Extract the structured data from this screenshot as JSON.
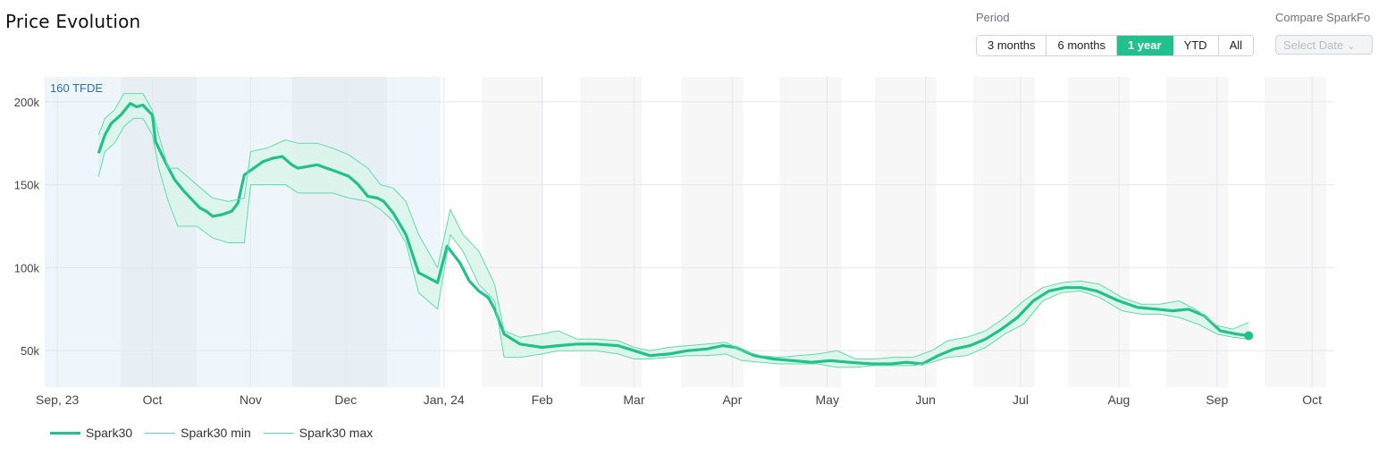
{
  "header": {
    "title": "Price Evolution",
    "period_label": "Period",
    "compare_label": "Compare SparkFo",
    "periods": [
      {
        "label": "3 months",
        "active": false
      },
      {
        "label": "6 months",
        "active": false
      },
      {
        "label": "1 year",
        "active": true
      },
      {
        "label": "YTD",
        "active": false
      },
      {
        "label": "All",
        "active": false
      }
    ],
    "date_placeholder": "Select Date"
  },
  "colors": {
    "accent": "#22c08a",
    "band_line": "#5fdcae",
    "band_fill": "#d9f5ea"
  },
  "chart_data": {
    "type": "line",
    "annotation": "160 TFDE",
    "x_tick_labels": [
      "Sep, 23",
      "Oct",
      "Nov",
      "Dec",
      "Jan, 24",
      "Feb",
      "Mar",
      "Apr",
      "May",
      "Jun",
      "Jul",
      "Aug",
      "Sep",
      "Oct"
    ],
    "x_ticks": [
      "2023-09-01",
      "2023-10-01",
      "2023-11-01",
      "2023-12-01",
      "2024-01-01",
      "2024-02-01",
      "2024-03-01",
      "2024-04-01",
      "2024-05-01",
      "2024-06-01",
      "2024-07-01",
      "2024-08-01",
      "2024-09-01",
      "2024-10-01"
    ],
    "x_range": [
      "2023-08-28",
      "2024-10-08"
    ],
    "y_tick_labels": [
      "50k",
      "100k",
      "150k",
      "200k"
    ],
    "y_ticks": [
      50000,
      100000,
      150000,
      200000
    ],
    "ylim": [
      28000,
      215000
    ],
    "shaded_ranges": [
      [
        "2023-08-28",
        "2023-12-31"
      ],
      [
        "2023-09-21",
        "2023-10-15"
      ],
      [
        "2023-11-14",
        "2023-12-14"
      ]
    ],
    "series": [
      {
        "name": "Spark30",
        "style": "thick",
        "x": [
          "2023-09-14",
          "2023-09-16",
          "2023-09-18",
          "2023-09-21",
          "2023-09-24",
          "2023-09-26",
          "2023-09-28",
          "2023-10-01",
          "2023-10-02",
          "2023-10-05",
          "2023-10-08",
          "2023-10-11",
          "2023-10-14",
          "2023-10-16",
          "2023-10-18",
          "2023-10-20",
          "2023-10-23",
          "2023-10-26",
          "2023-10-28",
          "2023-10-30",
          "2023-11-02",
          "2023-11-05",
          "2023-11-08",
          "2023-11-11",
          "2023-11-14",
          "2023-11-16",
          "2023-11-19",
          "2023-11-22",
          "2023-11-25",
          "2023-11-28",
          "2023-12-02",
          "2023-12-05",
          "2023-12-08",
          "2023-12-11",
          "2023-12-13",
          "2023-12-16",
          "2023-12-20",
          "2023-12-24",
          "2023-12-30",
          "2024-01-02",
          "2024-01-06",
          "2024-01-09",
          "2024-01-12",
          "2024-01-15",
          "2024-01-17",
          "2024-01-20",
          "2024-01-25",
          "2024-02-01",
          "2024-02-06",
          "2024-02-12",
          "2024-02-18",
          "2024-02-25",
          "2024-03-01",
          "2024-03-06",
          "2024-03-12",
          "2024-03-18",
          "2024-03-24",
          "2024-03-29",
          "2024-04-02",
          "2024-04-08",
          "2024-04-14",
          "2024-04-20",
          "2024-04-26",
          "2024-05-02",
          "2024-05-08",
          "2024-05-15",
          "2024-05-21",
          "2024-05-26",
          "2024-05-31",
          "2024-06-05",
          "2024-06-10",
          "2024-06-15",
          "2024-06-20",
          "2024-06-25",
          "2024-06-30",
          "2024-07-05",
          "2024-07-10",
          "2024-07-15",
          "2024-07-20",
          "2024-07-25",
          "2024-08-01",
          "2024-08-07",
          "2024-08-13",
          "2024-08-18",
          "2024-08-23",
          "2024-08-28",
          "2024-09-02",
          "2024-09-07",
          "2024-09-11"
        ],
        "y": [
          169000,
          180000,
          187000,
          192000,
          199000,
          197000,
          198000,
          192000,
          176000,
          164000,
          153000,
          146000,
          140000,
          136000,
          134000,
          131000,
          132000,
          134000,
          139000,
          156000,
          160000,
          164000,
          166000,
          167000,
          162000,
          160000,
          161000,
          162000,
          160000,
          158000,
          155000,
          150000,
          143000,
          142000,
          140000,
          133000,
          120000,
          97000,
          91000,
          113000,
          103000,
          92000,
          86000,
          82000,
          75000,
          60000,
          54000,
          52000,
          53000,
          54000,
          54000,
          53000,
          50000,
          47000,
          48000,
          50000,
          51000,
          53000,
          52000,
          47000,
          45000,
          44000,
          43000,
          44000,
          43000,
          42000,
          42000,
          43000,
          42000,
          47000,
          51000,
          53000,
          57000,
          63000,
          70000,
          80000,
          86000,
          88000,
          88000,
          86000,
          80000,
          76000,
          75000,
          74000,
          75000,
          71000,
          62000,
          60000,
          59000
        ]
      },
      {
        "name": "Spark30 min",
        "style": "thin",
        "x": [
          "2023-09-14",
          "2023-09-16",
          "2023-09-19",
          "2023-09-22",
          "2023-09-25",
          "2023-09-28",
          "2023-10-01",
          "2023-10-03",
          "2023-10-06",
          "2023-10-09",
          "2023-10-15",
          "2023-10-20",
          "2023-10-25",
          "2023-10-30",
          "2023-11-01",
          "2023-11-06",
          "2023-11-12",
          "2023-11-16",
          "2023-11-22",
          "2023-11-27",
          "2023-12-02",
          "2023-12-08",
          "2023-12-12",
          "2023-12-16",
          "2023-12-20",
          "2023-12-24",
          "2023-12-30",
          "2024-01-03",
          "2024-01-07",
          "2024-01-12",
          "2024-01-17",
          "2024-01-20",
          "2024-01-25",
          "2024-02-01",
          "2024-02-06",
          "2024-02-12",
          "2024-02-18",
          "2024-02-25",
          "2024-03-01",
          "2024-03-06",
          "2024-03-12",
          "2024-03-18",
          "2024-03-24",
          "2024-03-30",
          "2024-04-04",
          "2024-04-10",
          "2024-04-16",
          "2024-04-22",
          "2024-04-28",
          "2024-05-04",
          "2024-05-10",
          "2024-05-16",
          "2024-05-22",
          "2024-05-28",
          "2024-06-03",
          "2024-06-08",
          "2024-06-14",
          "2024-06-20",
          "2024-06-26",
          "2024-07-02",
          "2024-07-08",
          "2024-07-14",
          "2024-07-20",
          "2024-07-26",
          "2024-08-02",
          "2024-08-08",
          "2024-08-14",
          "2024-08-20",
          "2024-08-26",
          "2024-09-01",
          "2024-09-06",
          "2024-09-11"
        ],
        "y": [
          155000,
          170000,
          175000,
          185000,
          190000,
          190000,
          180000,
          160000,
          140000,
          125000,
          125000,
          118000,
          115000,
          115000,
          150000,
          150000,
          150000,
          145000,
          145000,
          145000,
          142000,
          140000,
          135000,
          128000,
          115000,
          85000,
          75000,
          120000,
          110000,
          90000,
          80000,
          46000,
          46000,
          48000,
          50000,
          50000,
          50000,
          48000,
          45000,
          45000,
          46000,
          47000,
          47000,
          48000,
          44000,
          43000,
          42000,
          42000,
          42000,
          40000,
          40000,
          41000,
          41000,
          41000,
          43000,
          46000,
          47000,
          52000,
          60000,
          66000,
          80000,
          85000,
          86000,
          82000,
          74000,
          72000,
          72000,
          70000,
          66000,
          60000,
          58000,
          57000
        ]
      },
      {
        "name": "Spark30 max",
        "style": "thin",
        "x": [
          "2023-09-14",
          "2023-09-16",
          "2023-09-19",
          "2023-09-22",
          "2023-09-25",
          "2023-09-28",
          "2023-10-01",
          "2023-10-03",
          "2023-10-06",
          "2023-10-09",
          "2023-10-15",
          "2023-10-20",
          "2023-10-25",
          "2023-10-30",
          "2023-11-01",
          "2023-11-06",
          "2023-11-12",
          "2023-11-16",
          "2023-11-22",
          "2023-11-27",
          "2023-12-02",
          "2023-12-08",
          "2023-12-12",
          "2023-12-16",
          "2023-12-20",
          "2023-12-24",
          "2023-12-30",
          "2024-01-03",
          "2024-01-07",
          "2024-01-12",
          "2024-01-17",
          "2024-01-20",
          "2024-01-25",
          "2024-02-01",
          "2024-02-06",
          "2024-02-12",
          "2024-02-18",
          "2024-02-25",
          "2024-03-01",
          "2024-03-06",
          "2024-03-12",
          "2024-03-18",
          "2024-03-24",
          "2024-03-30",
          "2024-04-04",
          "2024-04-10",
          "2024-04-16",
          "2024-04-22",
          "2024-04-28",
          "2024-05-04",
          "2024-05-10",
          "2024-05-16",
          "2024-05-22",
          "2024-05-28",
          "2024-06-03",
          "2024-06-08",
          "2024-06-14",
          "2024-06-20",
          "2024-06-26",
          "2024-07-02",
          "2024-07-08",
          "2024-07-14",
          "2024-07-20",
          "2024-07-26",
          "2024-08-02",
          "2024-08-08",
          "2024-08-14",
          "2024-08-20",
          "2024-08-26",
          "2024-09-01",
          "2024-09-06",
          "2024-09-11"
        ],
        "y": [
          180000,
          190000,
          195000,
          205000,
          205000,
          205000,
          195000,
          180000,
          160000,
          160000,
          150000,
          142000,
          140000,
          142000,
          170000,
          172000,
          177000,
          175000,
          175000,
          172000,
          168000,
          160000,
          150000,
          148000,
          140000,
          120000,
          100000,
          135000,
          120000,
          110000,
          90000,
          62000,
          58000,
          60000,
          62000,
          57000,
          57000,
          56000,
          52000,
          50000,
          52000,
          53000,
          54000,
          55000,
          50000,
          47000,
          46000,
          47000,
          48000,
          50000,
          45000,
          45000,
          46000,
          46000,
          50000,
          56000,
          58000,
          62000,
          70000,
          80000,
          88000,
          91000,
          92000,
          90000,
          82000,
          78000,
          78000,
          80000,
          74000,
          65000,
          63000,
          67000
        ]
      }
    ],
    "endpoint": {
      "x": "2024-09-11",
      "y": 59000
    }
  }
}
